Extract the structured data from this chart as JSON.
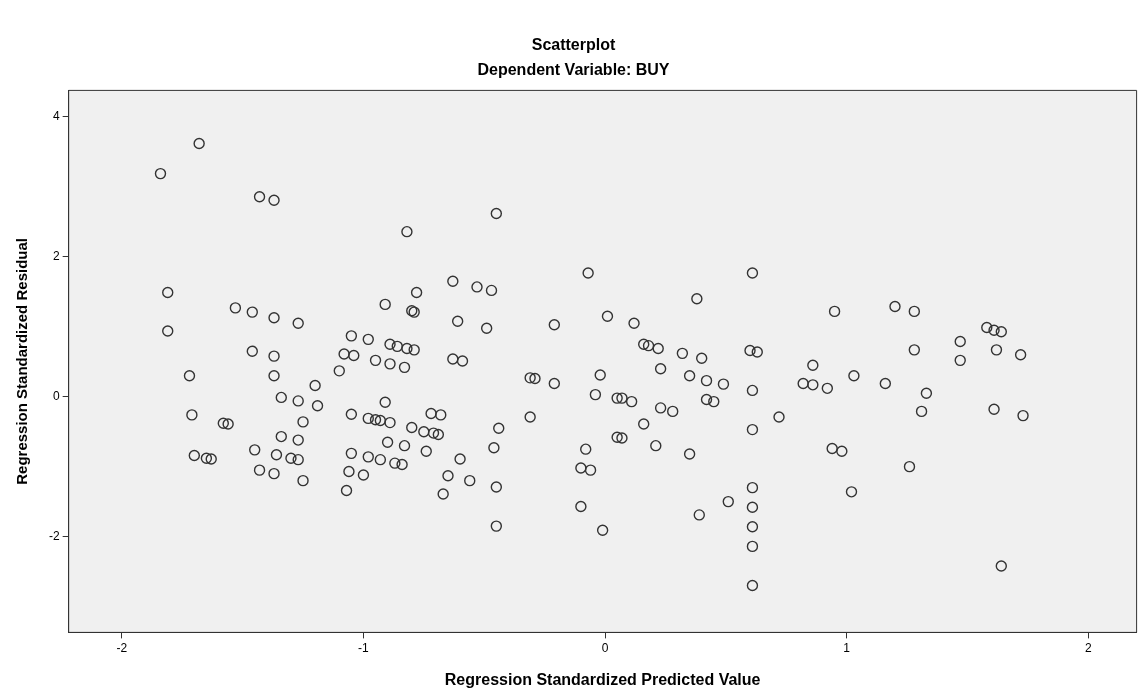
{
  "chart_data": {
    "type": "scatter",
    "title": "Scatterplot",
    "subtitle": "Dependent Variable: BUY",
    "xlabel": "Regression Standardized Predicted Value",
    "ylabel": "Regression Standardized Residual",
    "xlim": [
      -2.22,
      2.2
    ],
    "ylim": [
      -3.37,
      4.38
    ],
    "xticks": [
      -2,
      -1,
      0,
      1,
      2
    ],
    "yticks": [
      -2,
      0,
      2,
      4
    ],
    "grid": false,
    "legend": false,
    "marker": "circle",
    "series": [
      {
        "color": "#333333",
        "x": [
          -1.68,
          -1.84,
          -1.43,
          -1.37,
          -0.45,
          -0.82,
          -0.63,
          -0.53,
          -0.47,
          -0.78,
          -1.81,
          -0.91,
          -0.8,
          -0.79,
          -1.53,
          -1.46,
          -1.37,
          -1.27,
          -0.61,
          -0.49,
          -0.21,
          -1.81,
          -1.05,
          -0.98,
          -0.89,
          -0.86,
          -0.82,
          -0.79,
          -1.46,
          -1.37,
          -1.08,
          -1.04,
          -0.95,
          -0.89,
          -0.83,
          -0.63,
          -0.59,
          -1.1,
          -1.72,
          -1.37,
          -0.31,
          -0.29,
          -0.21,
          -0.02,
          -0.04,
          -1.2,
          -1.34,
          -1.27,
          -1.19,
          -0.91,
          -1.71,
          -1.58,
          -1.56,
          -1.25,
          -1.05,
          -0.98,
          -0.95,
          -0.93,
          -0.89,
          -0.8,
          -0.75,
          -0.71,
          -0.69,
          -0.72,
          -0.68,
          -0.44,
          -0.31,
          -1.34,
          -1.27,
          -0.9,
          -0.83,
          -0.74,
          -0.46,
          -1.7,
          -1.65,
          -1.63,
          -1.45,
          -1.36,
          -1.3,
          -1.27,
          -1.05,
          -0.98,
          -0.93,
          -0.87,
          -0.84,
          -0.6,
          -1.43,
          -1.37,
          -1.25,
          -1.06,
          -1.0,
          -0.65,
          -0.56,
          -0.45,
          -1.07,
          -0.67,
          -0.1,
          -0.45,
          -0.08,
          -0.1,
          -0.06,
          -0.01,
          -0.07,
          0.61,
          0.38,
          0.01,
          0.12,
          0.95,
          1.2,
          1.28,
          1.58,
          1.61,
          1.64,
          1.47,
          1.47,
          1.28,
          1.62,
          1.72,
          0.16,
          0.18,
          0.22,
          0.32,
          0.4,
          0.6,
          0.63,
          0.86,
          0.23,
          0.35,
          1.03,
          0.42,
          0.49,
          0.82,
          0.86,
          0.92,
          1.16,
          1.33,
          1.31,
          0.61,
          0.05,
          0.07,
          0.11,
          0.23,
          0.28,
          0.42,
          0.45,
          0.72,
          0.61,
          0.16,
          0.05,
          0.07,
          0.21,
          0.35,
          0.94,
          0.98,
          1.61,
          1.73,
          1.26,
          1.02,
          0.61,
          0.51,
          0.61,
          0.39,
          0.61,
          0.61,
          0.61,
          1.64
        ],
        "values": [
          3.62,
          3.19,
          2.86,
          2.81,
          2.62,
          2.36,
          1.65,
          1.57,
          1.52,
          1.49,
          1.49,
          1.32,
          1.23,
          1.21,
          1.27,
          1.21,
          1.13,
          1.05,
          1.08,
          0.98,
          1.03,
          0.94,
          0.87,
          0.82,
          0.75,
          0.72,
          0.69,
          0.67,
          0.65,
          0.58,
          0.61,
          0.59,
          0.52,
          0.47,
          0.42,
          0.54,
          0.51,
          0.37,
          0.3,
          0.3,
          0.27,
          0.26,
          0.19,
          0.31,
          0.03,
          0.16,
          -0.01,
          -0.06,
          -0.13,
          -0.08,
          -0.26,
          -0.38,
          -0.39,
          -0.36,
          -0.25,
          -0.31,
          -0.33,
          -0.34,
          -0.37,
          -0.44,
          -0.5,
          -0.52,
          -0.54,
          -0.24,
          -0.26,
          -0.45,
          -0.29,
          -0.57,
          -0.62,
          -0.65,
          -0.7,
          -0.78,
          -0.73,
          -0.84,
          -0.88,
          -0.89,
          -0.76,
          -0.83,
          -0.88,
          -0.9,
          -0.81,
          -0.86,
          -0.9,
          -0.95,
          -0.97,
          -0.89,
          -1.05,
          -1.1,
          -1.2,
          -1.07,
          -1.12,
          -1.13,
          -1.2,
          -1.29,
          -1.34,
          -1.39,
          -1.57,
          -1.85,
          -0.75,
          -1.02,
          -1.05,
          -1.91,
          1.77,
          1.77,
          1.4,
          1.15,
          1.05,
          1.22,
          1.29,
          1.22,
          0.99,
          0.95,
          0.93,
          0.79,
          0.52,
          0.67,
          0.67,
          0.6,
          0.75,
          0.73,
          0.69,
          0.62,
          0.55,
          0.66,
          0.64,
          0.45,
          0.4,
          0.3,
          0.3,
          0.23,
          0.18,
          0.19,
          0.17,
          0.12,
          0.19,
          0.05,
          -0.21,
          0.09,
          -0.02,
          -0.02,
          -0.07,
          -0.16,
          -0.21,
          -0.04,
          -0.07,
          -0.29,
          -0.47,
          -0.39,
          -0.58,
          -0.59,
          -0.7,
          -0.82,
          -0.74,
          -0.78,
          -0.18,
          -0.27,
          -1.0,
          -1.36,
          -1.3,
          -1.5,
          -1.58,
          -1.69,
          -1.86,
          -2.14,
          -2.7,
          -2.42
        ]
      }
    ]
  }
}
